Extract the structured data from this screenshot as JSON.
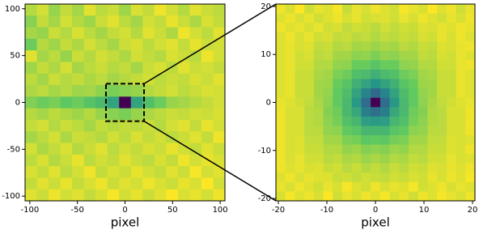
{
  "chart_data": [
    {
      "type": "heatmap",
      "x_label": "pixel",
      "colormap": "viridis",
      "xlim": [
        -105,
        105
      ],
      "ylim": [
        -105,
        105
      ],
      "xticks": [
        -100,
        -50,
        0,
        50,
        100
      ],
      "yticks": [
        -100,
        -50,
        0,
        50,
        100
      ],
      "values": [
        [
          0.82,
          0.86,
          0.78,
          0.84,
          0.8,
          0.88,
          0.83,
          0.85,
          0.79,
          0.87,
          0.84,
          0.9,
          0.86,
          0.82,
          0.88,
          0.85,
          0.83
        ],
        [
          0.76,
          0.84,
          0.8,
          0.86,
          0.82,
          0.79,
          0.85,
          0.88,
          0.83,
          0.8,
          0.86,
          0.84,
          0.89,
          0.85,
          0.81,
          0.87,
          0.84
        ],
        [
          0.8,
          0.78,
          0.85,
          0.82,
          0.87,
          0.83,
          0.8,
          0.84,
          0.86,
          0.82,
          0.88,
          0.85,
          0.81,
          0.9,
          0.86,
          0.83,
          0.88
        ],
        [
          0.72,
          0.82,
          0.79,
          0.84,
          0.81,
          0.86,
          0.83,
          0.8,
          0.85,
          0.87,
          0.83,
          0.86,
          0.88,
          0.84,
          0.89,
          0.85,
          0.86
        ],
        [
          0.88,
          0.8,
          0.83,
          0.78,
          0.85,
          0.82,
          0.86,
          0.84,
          0.81,
          0.86,
          0.84,
          0.82,
          0.87,
          0.85,
          0.83,
          0.9,
          0.86
        ],
        [
          0.79,
          0.84,
          0.81,
          0.86,
          0.8,
          0.83,
          0.85,
          0.82,
          0.84,
          0.8,
          0.85,
          0.87,
          0.83,
          0.88,
          0.85,
          0.86,
          0.84
        ],
        [
          0.83,
          0.8,
          0.85,
          0.82,
          0.84,
          0.81,
          0.83,
          0.8,
          0.82,
          0.84,
          0.86,
          0.83,
          0.85,
          0.84,
          0.87,
          0.85,
          0.88
        ],
        [
          0.81,
          0.83,
          0.8,
          0.82,
          0.79,
          0.8,
          0.77,
          0.74,
          0.76,
          0.78,
          0.82,
          0.84,
          0.86,
          0.83,
          0.85,
          0.87,
          0.86
        ],
        [
          0.75,
          0.72,
          0.74,
          0.7,
          0.72,
          0.68,
          0.64,
          0.55,
          0.05,
          0.55,
          0.66,
          0.72,
          0.78,
          0.8,
          0.82,
          0.84,
          0.86
        ],
        [
          0.82,
          0.8,
          0.83,
          0.81,
          0.79,
          0.82,
          0.78,
          0.76,
          0.74,
          0.78,
          0.81,
          0.83,
          0.85,
          0.84,
          0.86,
          0.85,
          0.87
        ],
        [
          0.84,
          0.86,
          0.82,
          0.85,
          0.83,
          0.8,
          0.84,
          0.82,
          0.84,
          0.83,
          0.85,
          0.82,
          0.86,
          0.88,
          0.84,
          0.89,
          0.86
        ],
        [
          0.8,
          0.83,
          0.86,
          0.81,
          0.85,
          0.84,
          0.82,
          0.86,
          0.83,
          0.87,
          0.84,
          0.86,
          0.83,
          0.85,
          0.88,
          0.84,
          0.9
        ],
        [
          0.86,
          0.81,
          0.84,
          0.87,
          0.82,
          0.85,
          0.88,
          0.83,
          0.86,
          0.84,
          0.87,
          0.85,
          0.89,
          0.86,
          0.84,
          0.88,
          0.85
        ],
        [
          0.83,
          0.87,
          0.82,
          0.85,
          0.89,
          0.83,
          0.86,
          0.84,
          0.88,
          0.85,
          0.83,
          0.87,
          0.84,
          0.9,
          0.86,
          0.89,
          0.87
        ],
        [
          0.87,
          0.84,
          0.88,
          0.83,
          0.86,
          0.9,
          0.84,
          0.87,
          0.85,
          0.89,
          0.86,
          0.84,
          0.88,
          0.85,
          0.91,
          0.86,
          0.88
        ],
        [
          0.84,
          0.88,
          0.85,
          0.89,
          0.84,
          0.87,
          0.9,
          0.85,
          0.88,
          0.86,
          0.9,
          0.87,
          0.85,
          0.89,
          0.87,
          0.92,
          0.86
        ],
        [
          0.88,
          0.85,
          0.9,
          0.86,
          0.88,
          0.84,
          0.87,
          0.91,
          0.86,
          0.89,
          0.85,
          0.88,
          0.92,
          0.87,
          0.89,
          0.86,
          0.9
        ]
      ]
    },
    {
      "type": "heatmap",
      "x_label": "pixel",
      "colormap": "viridis",
      "xlim": [
        -20.5,
        20.5
      ],
      "ylim": [
        -20.5,
        20.5
      ],
      "xticks": [
        -20,
        -10,
        0,
        10,
        20
      ],
      "yticks": [
        -20,
        -10,
        0,
        10,
        20
      ],
      "values": [
        [
          0.88,
          0.85,
          0.9,
          0.84,
          0.87,
          0.86,
          0.89,
          0.83,
          0.87,
          0.85,
          0.88,
          0.86,
          0.84,
          0.89,
          0.87,
          0.85,
          0.9,
          0.86,
          0.88,
          0.84,
          0.87
        ],
        [
          0.86,
          0.88,
          0.85,
          0.87,
          0.84,
          0.86,
          0.88,
          0.85,
          0.87,
          0.84,
          0.85,
          0.86,
          0.84,
          0.87,
          0.85,
          0.88,
          0.86,
          0.84,
          0.87,
          0.85,
          0.88
        ],
        [
          0.88,
          0.86,
          0.87,
          0.85,
          0.87,
          0.84,
          0.85,
          0.82,
          0.84,
          0.83,
          0.81,
          0.84,
          0.82,
          0.84,
          0.83,
          0.86,
          0.85,
          0.87,
          0.86,
          0.88,
          0.87
        ],
        [
          0.86,
          0.88,
          0.85,
          0.87,
          0.84,
          0.85,
          0.82,
          0.83,
          0.81,
          0.82,
          0.8,
          0.82,
          0.81,
          0.83,
          0.82,
          0.85,
          0.84,
          0.87,
          0.85,
          0.88,
          0.86
        ],
        [
          0.86,
          0.87,
          0.85,
          0.86,
          0.82,
          0.83,
          0.8,
          0.81,
          0.78,
          0.79,
          0.77,
          0.79,
          0.78,
          0.81,
          0.8,
          0.83,
          0.82,
          0.86,
          0.85,
          0.87,
          0.88
        ],
        [
          0.86,
          0.87,
          0.84,
          0.85,
          0.81,
          0.82,
          0.78,
          0.78,
          0.75,
          0.76,
          0.73,
          0.76,
          0.75,
          0.78,
          0.78,
          0.82,
          0.81,
          0.85,
          0.84,
          0.87,
          0.86
        ],
        [
          0.86,
          0.87,
          0.84,
          0.84,
          0.8,
          0.8,
          0.76,
          0.75,
          0.7,
          0.7,
          0.67,
          0.7,
          0.7,
          0.75,
          0.76,
          0.8,
          0.8,
          0.84,
          0.84,
          0.87,
          0.88
        ],
        [
          0.86,
          0.87,
          0.83,
          0.83,
          0.79,
          0.78,
          0.73,
          0.71,
          0.65,
          0.63,
          0.59,
          0.63,
          0.65,
          0.71,
          0.73,
          0.78,
          0.79,
          0.83,
          0.83,
          0.87,
          0.86
        ],
        [
          0.86,
          0.87,
          0.83,
          0.83,
          0.78,
          0.77,
          0.7,
          0.67,
          0.59,
          0.54,
          0.49,
          0.54,
          0.59,
          0.67,
          0.7,
          0.77,
          0.78,
          0.83,
          0.83,
          0.87,
          0.86
        ],
        [
          0.86,
          0.87,
          0.83,
          0.83,
          0.78,
          0.76,
          0.69,
          0.64,
          0.54,
          0.43,
          0.34,
          0.43,
          0.54,
          0.64,
          0.69,
          0.76,
          0.78,
          0.83,
          0.83,
          0.87,
          0.86
        ],
        [
          0.87,
          0.86,
          0.84,
          0.82,
          0.79,
          0.75,
          0.69,
          0.62,
          0.5,
          0.35,
          0.05,
          0.35,
          0.5,
          0.62,
          0.69,
          0.75,
          0.79,
          0.82,
          0.84,
          0.86,
          0.87
        ],
        [
          0.88,
          0.85,
          0.85,
          0.81,
          0.8,
          0.74,
          0.71,
          0.62,
          0.56,
          0.41,
          0.36,
          0.41,
          0.56,
          0.62,
          0.71,
          0.74,
          0.8,
          0.81,
          0.85,
          0.85,
          0.88
        ],
        [
          0.88,
          0.85,
          0.85,
          0.81,
          0.8,
          0.75,
          0.72,
          0.65,
          0.61,
          0.52,
          0.51,
          0.52,
          0.61,
          0.65,
          0.72,
          0.75,
          0.8,
          0.81,
          0.85,
          0.85,
          0.88
        ],
        [
          0.88,
          0.85,
          0.85,
          0.81,
          0.81,
          0.76,
          0.75,
          0.69,
          0.67,
          0.61,
          0.61,
          0.61,
          0.67,
          0.69,
          0.75,
          0.76,
          0.81,
          0.81,
          0.85,
          0.85,
          0.88
        ],
        [
          0.88,
          0.85,
          0.86,
          0.82,
          0.82,
          0.78,
          0.78,
          0.73,
          0.72,
          0.68,
          0.69,
          0.68,
          0.72,
          0.73,
          0.78,
          0.78,
          0.82,
          0.82,
          0.86,
          0.85,
          0.86
        ],
        [
          0.88,
          0.85,
          0.86,
          0.83,
          0.83,
          0.8,
          0.8,
          0.76,
          0.77,
          0.74,
          0.75,
          0.74,
          0.77,
          0.76,
          0.8,
          0.8,
          0.83,
          0.83,
          0.86,
          0.85,
          0.88
        ],
        [
          0.88,
          0.85,
          0.87,
          0.84,
          0.84,
          0.81,
          0.82,
          0.79,
          0.8,
          0.77,
          0.79,
          0.77,
          0.8,
          0.79,
          0.82,
          0.81,
          0.84,
          0.84,
          0.87,
          0.85,
          0.86
        ],
        [
          0.88,
          0.86,
          0.87,
          0.85,
          0.86,
          0.83,
          0.84,
          0.81,
          0.83,
          0.8,
          0.82,
          0.8,
          0.83,
          0.81,
          0.84,
          0.83,
          0.86,
          0.85,
          0.87,
          0.86,
          0.88
        ],
        [
          0.86,
          0.88,
          0.85,
          0.87,
          0.86,
          0.86,
          0.83,
          0.84,
          0.82,
          0.84,
          0.83,
          0.82,
          0.84,
          0.83,
          0.85,
          0.84,
          0.87,
          0.85,
          0.88,
          0.86,
          0.89
        ],
        [
          0.87,
          0.85,
          0.88,
          0.86,
          0.84,
          0.87,
          0.85,
          0.89,
          0.86,
          0.84,
          0.88,
          0.85,
          0.87,
          0.86,
          0.89,
          0.84,
          0.86,
          0.88,
          0.85,
          0.87,
          0.86
        ],
        [
          0.85,
          0.89,
          0.86,
          0.88,
          0.85,
          0.9,
          0.84,
          0.87,
          0.85,
          0.88,
          0.86,
          0.89,
          0.85,
          0.87,
          0.84,
          0.88,
          0.86,
          0.89,
          0.87,
          0.85,
          0.88
        ]
      ]
    }
  ]
}
